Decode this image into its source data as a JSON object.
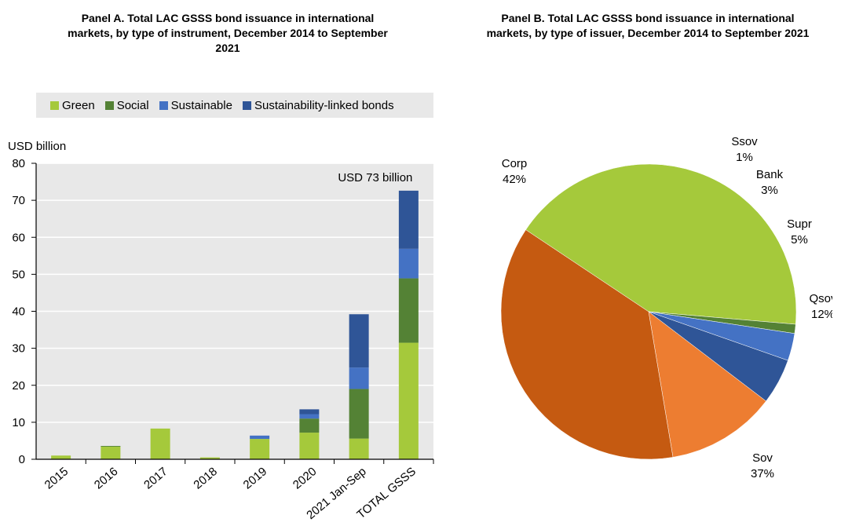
{
  "panelA": {
    "title": "Panel A. Total LAC GSSS bond issuance in international markets, by type of instrument, December 2014 to September 2021"
  },
  "panelB": {
    "title": "Panel B. Total LAC GSSS bond issuance in international markets, by type of issuer, December 2014 to September 2021"
  },
  "colors": {
    "green": "#a5c93b",
    "social": "#548235",
    "sustainable": "#4472c4",
    "slb": "#2f5597",
    "corp": "#a5c93b",
    "ssov": "#548235",
    "bank": "#4472c4",
    "supr": "#2f5597",
    "qsov": "#ed7d31",
    "sov": "#c55a11"
  },
  "chart_data": [
    {
      "type": "bar",
      "stacked": true,
      "ylabel": "USD billion",
      "ylim": [
        0,
        80
      ],
      "yticks": [
        0,
        10,
        20,
        30,
        40,
        50,
        60,
        70,
        80
      ],
      "legend_position": "top",
      "categories": [
        "2015",
        "2016",
        "2017",
        "2018",
        "2019",
        "2020",
        "2021 Jan-Sep",
        "TOTAL GSSS"
      ],
      "series": [
        {
          "name": "Green",
          "color_key": "green",
          "values": [
            1.0,
            3.4,
            8.3,
            0.5,
            5.5,
            7.2,
            5.6,
            31.5
          ]
        },
        {
          "name": "Social",
          "color_key": "social",
          "values": [
            0,
            0.2,
            0,
            0,
            0,
            3.8,
            13.4,
            17.4
          ]
        },
        {
          "name": "Sustainable",
          "color_key": "sustainable",
          "values": [
            0,
            0,
            0,
            0,
            0.9,
            1.2,
            5.8,
            8.0
          ]
        },
        {
          "name": "Sustainability-linked bonds",
          "color_key": "slb",
          "values": [
            0,
            0,
            0,
            0,
            0,
            1.3,
            14.4,
            15.7
          ]
        }
      ],
      "annotation": "USD 73 billion"
    },
    {
      "type": "pie",
      "slices": [
        {
          "label": "Corp",
          "pct_label": "42%",
          "value": 42,
          "color_key": "corp"
        },
        {
          "label": "Ssov",
          "pct_label": "1%",
          "value": 1,
          "color_key": "ssov"
        },
        {
          "label": "Bank",
          "pct_label": "3%",
          "value": 3,
          "color_key": "bank"
        },
        {
          "label": "Supr",
          "pct_label": "5%",
          "value": 5,
          "color_key": "supr"
        },
        {
          "label": "Qsov",
          "pct_label": "12%",
          "value": 12,
          "color_key": "qsov"
        },
        {
          "label": "Sov",
          "pct_label": "37%",
          "value": 37,
          "color_key": "sov"
        }
      ]
    }
  ]
}
